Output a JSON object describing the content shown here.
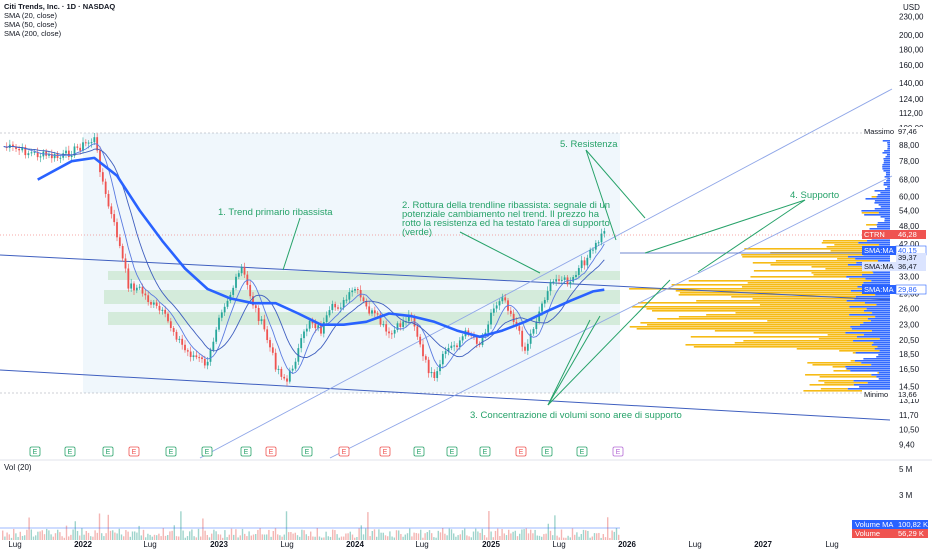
{
  "legend": {
    "symbol": "Citi Trends, Inc. · 1D · NASDAQ",
    "sma20": "SMA (20, close)",
    "sma50": "SMA (50, close)",
    "sma200": "SMA (200, close)"
  },
  "currency": "USD",
  "volume_label": "Vol (20)",
  "colors": {
    "up": "#26a69a",
    "down": "#ef5350",
    "trendline": "#3f5fbf",
    "channel": "#8fa6e8",
    "sma200": "#2962ff",
    "annotation": "#26a269",
    "volume_profile": "#f5b70a",
    "volume_profile_blue": "#2962ff",
    "support_zone": "#cfe9d5",
    "range_box": "#eaf3fb"
  },
  "annotations": [
    {
      "id": "1",
      "text": [
        "1. Trend primario ribassista"
      ]
    },
    {
      "id": "2",
      "text": [
        "2. Rottura della trendline ribassista: segnale di un",
        "potenziale cambiamento nel trend. Il prezzo ha",
        "rotto la resistenza ed ha testato l'area di supporto",
        "(verde)"
      ]
    },
    {
      "id": "3",
      "text": [
        "3. Concentrazione di volumi sono aree di supporto"
      ]
    },
    {
      "id": "4",
      "text": [
        "4. Supporto"
      ]
    },
    {
      "id": "5",
      "text": [
        "5. Resistenza"
      ]
    }
  ],
  "price_tags": [
    {
      "label": "Massimo",
      "value": "97,46",
      "style": "plain"
    },
    {
      "label": "CTRN",
      "value": "46,28",
      "style": "red"
    },
    {
      "label": "SMA:MA",
      "value": "40,15",
      "style": "blue"
    },
    {
      "label": "",
      "value": "39,37",
      "style": "light"
    },
    {
      "label": "SMA:MA",
      "value": "36,47",
      "style": "light"
    },
    {
      "label": "SMA:MA",
      "value": "29,86",
      "style": "blue"
    },
    {
      "label": "Minimo",
      "value": "13,66",
      "style": "plain"
    }
  ],
  "volume_tags": [
    {
      "label": "Volume MA",
      "value": "100,82 K",
      "style": "blue"
    },
    {
      "label": "Volume",
      "value": "56,29 K",
      "style": "red"
    }
  ],
  "volume_ticks": [
    "5 M",
    "3 M"
  ],
  "earnings_marker": "E",
  "chart_data": {
    "type": "line",
    "title": "Citi Trends, Inc. · 1D · NASDAQ",
    "y_scale": "log",
    "y_unit": "USD",
    "y_ticks": [
      "230,00",
      "200,00",
      "180,00",
      "160,00",
      "140,00",
      "124,00",
      "112,00",
      "100,00",
      "88,00",
      "78,00",
      "68,00",
      "60,00",
      "54,00",
      "48,00",
      "42,00",
      "38,00",
      "33,00",
      "29,00",
      "26,00",
      "23,00",
      "20,50",
      "18,50",
      "16,50",
      "14,50",
      "13,10",
      "11,70",
      "10,50",
      "9,40"
    ],
    "x_ticks": [
      "Lug",
      "2022",
      "Lug",
      "2023",
      "Lug",
      "2024",
      "Lug",
      "2025",
      "Lug",
      "2026",
      "Lug",
      "2027",
      "Lug"
    ],
    "series": [
      {
        "name": "CTRN",
        "x": [
          "2021-06",
          "2021-09",
          "2021-11",
          "2022-01",
          "2022-02",
          "2022-03",
          "2022-04",
          "2022-05",
          "2022-06",
          "2022-07",
          "2022-08",
          "2022-09",
          "2022-10",
          "2022-12",
          "2023-01",
          "2023-02",
          "2023-03",
          "2023-04",
          "2023-05",
          "2023-06",
          "2023-07",
          "2023-08",
          "2023-09",
          "2023-10",
          "2023-11",
          "2023-12",
          "2024-01",
          "2024-02",
          "2024-03",
          "2024-04",
          "2024-05",
          "2024-06",
          "2024-07",
          "2024-08",
          "2024-09",
          "2024-10",
          "2024-11",
          "2024-12",
          "2025-01",
          "2025-02",
          "2025-03",
          "2025-04",
          "2025-05",
          "2025-06",
          "2025-07",
          "2025-08",
          "2025-09",
          "2025-10",
          "2025-11"
        ],
        "values": [
          87,
          82,
          80,
          88,
          92,
          60,
          45,
          31,
          30,
          27,
          25,
          22,
          19,
          17,
          25,
          29,
          35,
          27,
          22,
          17,
          15,
          19,
          24,
          22,
          26,
          27,
          30,
          26,
          24,
          21,
          23,
          25,
          18,
          15,
          19,
          20,
          22,
          20,
          25,
          29,
          24,
          19,
          24,
          30,
          33,
          31,
          36,
          40,
          46.28
        ]
      },
      {
        "name": "SMA (200, close)",
        "x": [
          "2021-09",
          "2021-12",
          "2022-02",
          "2022-04",
          "2022-06",
          "2022-08",
          "2022-10",
          "2022-12",
          "2023-02",
          "2023-04",
          "2023-06",
          "2023-08",
          "2023-10",
          "2023-12",
          "2024-02",
          "2024-04",
          "2024-06",
          "2024-08",
          "2024-10",
          "2024-12",
          "2025-02",
          "2025-04",
          "2025-06",
          "2025-08",
          "2025-10",
          "2025-11"
        ],
        "values": [
          68,
          78,
          80,
          70,
          54,
          43,
          35,
          30,
          28,
          27,
          27,
          25,
          23,
          23,
          23.5,
          25,
          24.5,
          23.5,
          22,
          21,
          22,
          23.5,
          25.5,
          27.5,
          29.5,
          29.86
        ]
      }
    ],
    "support_zones_usd": [
      [
        34.5,
        36.5
      ],
      [
        29,
        31
      ],
      [
        24.5,
        26
      ]
    ],
    "maximum": 97.46,
    "minimum": 13.66
  }
}
